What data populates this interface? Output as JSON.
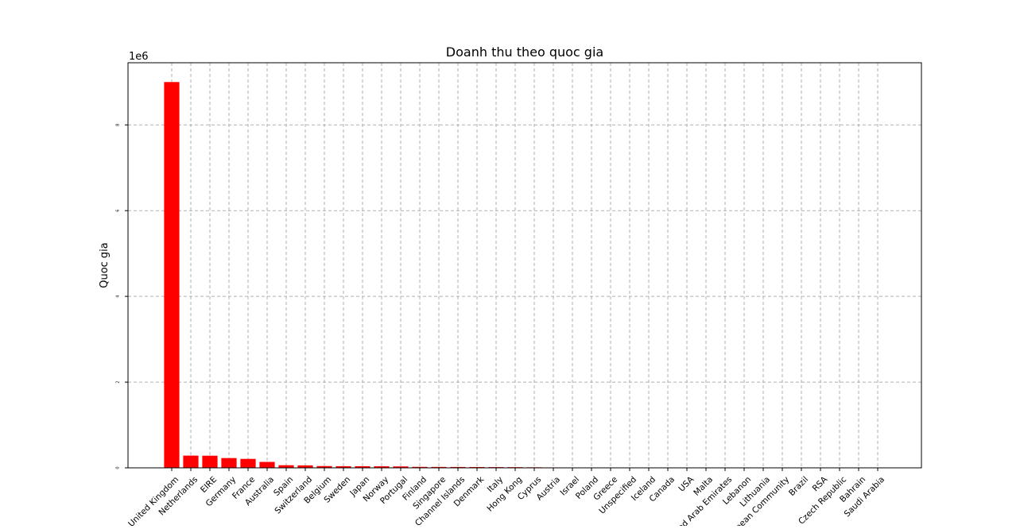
{
  "chart_data": {
    "type": "bar",
    "title": "Doanh thu theo quoc gia",
    "xlabel": "",
    "ylabel": "Quoc gia",
    "y_offset_label": "1e6",
    "ylim": [
      0,
      9.45
    ],
    "yticks": [
      0,
      2,
      4,
      6,
      8
    ],
    "grid": true,
    "bar_color": "#ff0000",
    "categories": [
      "United Kingdom",
      "Netherlands",
      "EIRE",
      "Germany",
      "France",
      "Australia",
      "Spain",
      "Switzerland",
      "Belgium",
      "Sweden",
      "Japan",
      "Norway",
      "Portugal",
      "Finland",
      "Singapore",
      "Channel Islands",
      "Denmark",
      "Italy",
      "Hong Kong",
      "Cyprus",
      "Austria",
      "Israel",
      "Poland",
      "Greece",
      "Unspecified",
      "Iceland",
      "Canada",
      "USA",
      "Malta",
      "United Arab Emirates",
      "Lebanon",
      "Lithuania",
      "European Community",
      "Brazil",
      "RSA",
      "Czech Republic",
      "Bahrain",
      "Saudi Arabia"
    ],
    "values": [
      9.0,
      0.285,
      0.283,
      0.228,
      0.209,
      0.138,
      0.061,
      0.057,
      0.041,
      0.038,
      0.037,
      0.036,
      0.033,
      0.023,
      0.021,
      0.02,
      0.019,
      0.017,
      0.016,
      0.013,
      0.01,
      0.008,
      0.007,
      0.005,
      0.004,
      0.004,
      0.004,
      0.002,
      0.002,
      0.002,
      0.002,
      0.002,
      0.001,
      0.001,
      0.001,
      0.001,
      0.0005,
      0.0001
    ]
  }
}
